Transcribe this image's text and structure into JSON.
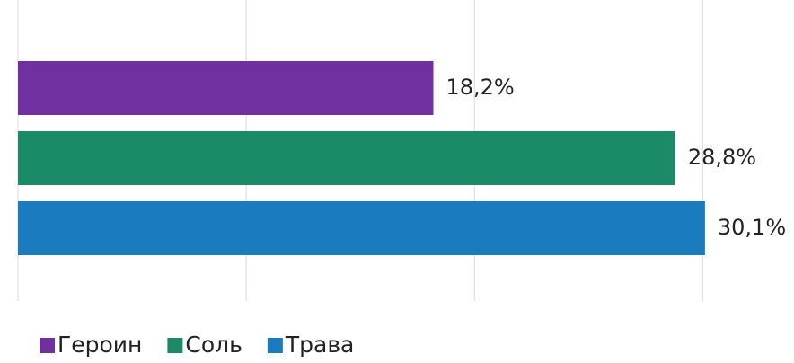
{
  "chart_data": {
    "type": "bar",
    "orientation": "horizontal",
    "categories": [
      null
    ],
    "series": [
      {
        "name": "Героин",
        "color": "#7030a0",
        "values": [
          18.2
        ],
        "value_labels": [
          "18,2%"
        ]
      },
      {
        "name": "Соль",
        "color": "#1a8a68",
        "values": [
          28.8
        ],
        "value_labels": [
          "28,8%"
        ]
      },
      {
        "name": "Трава",
        "color": "#1b7bbf",
        "values": [
          30.1
        ],
        "value_labels": [
          "30,1%"
        ]
      }
    ],
    "xlim": [
      0,
      34
    ],
    "xticks": [
      0,
      10,
      20,
      30
    ],
    "tick_labels": false,
    "grid": true,
    "legend": "bottom-left"
  }
}
